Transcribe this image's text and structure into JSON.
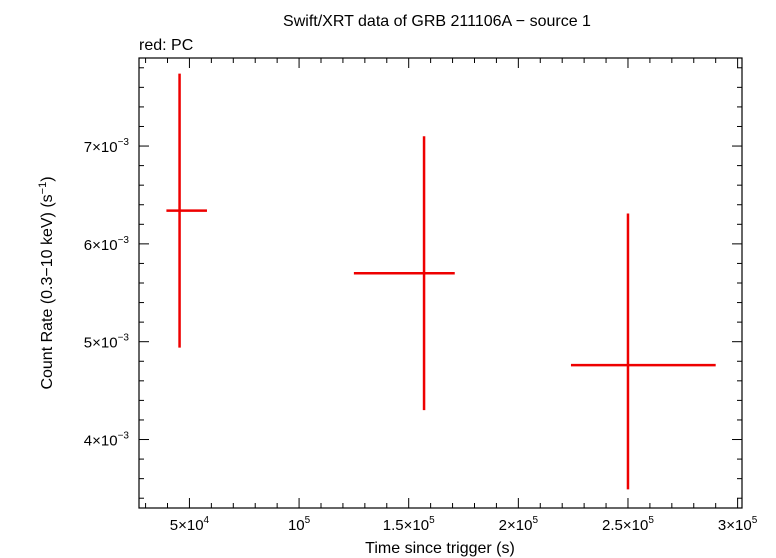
{
  "chart_data": {
    "type": "scatter",
    "title": "Swift/XRT data of GRB 211106A − source 1",
    "subtitle": "red: PC",
    "xlabel": "Time since trigger (s)",
    "ylabel_main": "Count Rate (0.3−10 keV) (s",
    "ylabel_sup": "−1",
    "ylabel_tail": ")",
    "xlim": [
      27000,
      302000
    ],
    "ylim": [
      0.0033,
      0.0079
    ],
    "grid": false,
    "x_ticks": [
      {
        "value": 50000,
        "mant": "5×10",
        "exp": "4"
      },
      {
        "value": 100000,
        "mant": "10",
        "exp": "5"
      },
      {
        "value": 150000,
        "mant": "1.5×10",
        "exp": "5"
      },
      {
        "value": 200000,
        "mant": "2×10",
        "exp": "5"
      },
      {
        "value": 250000,
        "mant": "2.5×10",
        "exp": "5"
      },
      {
        "value": 300000,
        "mant": "3×10",
        "exp": "5"
      }
    ],
    "y_ticks": [
      {
        "value": 0.004,
        "mant": "4×10",
        "exp": "−3"
      },
      {
        "value": 0.005,
        "mant": "5×10",
        "exp": "−3"
      },
      {
        "value": 0.006,
        "mant": "6×10",
        "exp": "−3"
      },
      {
        "value": 0.007,
        "mant": "7×10",
        "exp": "−3"
      }
    ],
    "series": [
      {
        "name": "PC",
        "color": "#ee0000",
        "points": [
          {
            "x": 45500,
            "x_lo": 39500,
            "x_hi": 58000,
            "y": 0.00634,
            "y_lo": 0.00494,
            "y_hi": 0.00774
          },
          {
            "x": 157000,
            "x_lo": 125000,
            "x_hi": 171000,
            "y": 0.0057,
            "y_lo": 0.0043,
            "y_hi": 0.0071
          },
          {
            "x": 250000,
            "x_lo": 224000,
            "x_hi": 290000,
            "y": 0.00476,
            "y_lo": 0.00349,
            "y_hi": 0.00631
          }
        ]
      }
    ]
  }
}
